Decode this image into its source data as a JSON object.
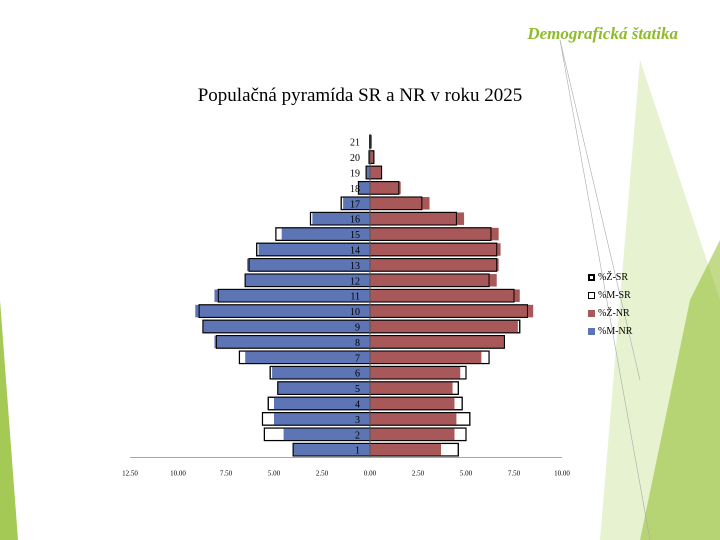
{
  "header": {
    "title": "Demografická štatika"
  },
  "colors": {
    "zena_nr": "#a85858",
    "muz_nr": "#5d74b5",
    "outline": "#000000",
    "accent": "#8fbc2a"
  },
  "chart_data": {
    "type": "bar",
    "orientation": "horizontal",
    "title": "Populačná pyramída SR a NR v roku 2025",
    "categories": [
      "1",
      "2",
      "3",
      "4",
      "5",
      "6",
      "7",
      "8",
      "9",
      "10",
      "11",
      "12",
      "13",
      "14",
      "15",
      "16",
      "17",
      "18",
      "19",
      "20",
      "21"
    ],
    "x_ticks": [
      "12.50",
      "10.00",
      "7.50",
      "5.00",
      "2.50",
      "0.00",
      "2.50",
      "5.00",
      "7.50",
      "10.00"
    ],
    "x_tick_values": [
      -12.5,
      -10,
      -7.5,
      -5,
      -2.5,
      0,
      2.5,
      5,
      7.5,
      10
    ],
    "xlim": [
      -12.5,
      10
    ],
    "legend_position": "right",
    "series": [
      {
        "name": "%Ž-SR",
        "style": "outline",
        "values": [
          4.6,
          5.0,
          5.2,
          4.8,
          4.6,
          5.0,
          6.2,
          7.0,
          7.8,
          8.2,
          7.5,
          6.2,
          6.6,
          6.6,
          6.3,
          4.5,
          2.7,
          1.5,
          0.6,
          0.2,
          0.05
        ]
      },
      {
        "name": "%M-SR",
        "style": "outline",
        "values": [
          -4.0,
          -5.5,
          -5.6,
          -5.3,
          -4.8,
          -5.2,
          -6.8,
          -8.0,
          -8.7,
          -8.9,
          -7.9,
          -6.5,
          -6.3,
          -5.9,
          -4.9,
          -3.1,
          -1.5,
          -0.6,
          -0.2,
          -0.05,
          -0.02
        ]
      },
      {
        "name": "%Ž-NR",
        "style": "fill",
        "values": [
          3.7,
          4.4,
          4.5,
          4.4,
          4.3,
          4.7,
          5.8,
          7.0,
          7.7,
          8.5,
          7.8,
          6.6,
          6.7,
          6.8,
          6.7,
          4.9,
          3.1,
          1.6,
          0.6,
          0.2,
          0.05
        ]
      },
      {
        "name": "%M-NR",
        "style": "fill",
        "values": [
          -4.0,
          -4.5,
          -5.0,
          -5.0,
          -4.8,
          -5.1,
          -6.5,
          -8.1,
          -8.7,
          -9.1,
          -8.1,
          -6.5,
          -6.4,
          -5.8,
          -4.6,
          -3.0,
          -1.4,
          -0.6,
          -0.2,
          -0.05,
          -0.02
        ]
      }
    ]
  }
}
